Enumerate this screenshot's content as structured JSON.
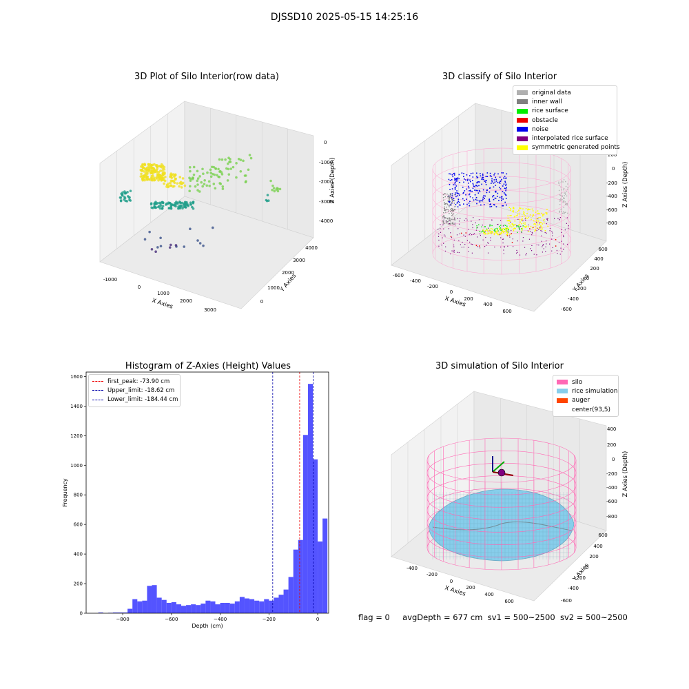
{
  "figure": {
    "suptitle": "DJSSD10 2025-05-15 14:25:16",
    "footer": {
      "flag": "flag = 0",
      "avg_depth": "avgDepth = 677 cm",
      "sv1": "sv1 = 500~2500",
      "sv2": "sv2 = 500~2500"
    }
  },
  "chart_data": [
    {
      "type": "scatter",
      "projection": "3d",
      "title": "3D Plot of Silo Interior(row data)",
      "xlabel": "X Axies",
      "ylabel": "Y Axies",
      "zlabel": "Z Axies (Depth)",
      "x_ticks": [
        "-1000",
        "0",
        "1000",
        "2000",
        "3000"
      ],
      "y_ticks": [
        "0",
        "1000",
        "2000",
        "3000",
        "4000"
      ],
      "z_ticks": [
        "0",
        "-1000",
        "-2000",
        "-3000",
        "-4000"
      ],
      "colormap": "viridis",
      "clusters": [
        {
          "label": "yellow",
          "color": "#f0e020"
        },
        {
          "label": "light-green",
          "color": "#7ad151"
        },
        {
          "label": "teal",
          "color": "#1f9e89"
        },
        {
          "label": "blue",
          "color": "#3b528b"
        },
        {
          "label": "purple",
          "color": "#472d7b"
        }
      ]
    },
    {
      "type": "scatter",
      "projection": "3d",
      "title": "3D classify of Silo Interior",
      "xlabel": "X Axies",
      "ylabel": "Y Axies",
      "zlabel": "Z Axies (Depth)",
      "x_ticks": [
        "-600",
        "-400",
        "-200",
        "0",
        "200",
        "400",
        "600"
      ],
      "y_ticks": [
        "-600",
        "-400",
        "-200",
        "0",
        "200",
        "400",
        "600"
      ],
      "z_ticks": [
        "200",
        "0",
        "-200",
        "-400",
        "-600",
        "-800"
      ],
      "legend_position": "top-right",
      "legend": [
        {
          "label": "original data",
          "color": "#b0b0b0"
        },
        {
          "label": "inner wall",
          "color": "#808080"
        },
        {
          "label": "rice surface",
          "color": "#00ee00"
        },
        {
          "label": "obstacle",
          "color": "#ee0000"
        },
        {
          "label": "noise",
          "color": "#0000ee"
        },
        {
          "label": "interpolated rice surface",
          "color": "#800080"
        },
        {
          "label": "symmetric generated points",
          "color": "#ffff00"
        }
      ]
    },
    {
      "type": "bar",
      "title": "Histogram of Z-Axies (Height) Values",
      "xlabel": "Depth (cm)",
      "ylabel": "Frequency",
      "xlim": [
        -950,
        45
      ],
      "ylim": [
        0,
        1630
      ],
      "x_ticks": [
        -800,
        -600,
        -400,
        -200,
        0
      ],
      "y_ticks": [
        0,
        200,
        400,
        600,
        800,
        1000,
        1200,
        1400,
        1600
      ],
      "bar_color": "#4b4bff",
      "bin_width": 20,
      "bins": [
        [
          -900,
          5
        ],
        [
          -880,
          0
        ],
        [
          -860,
          3
        ],
        [
          -840,
          5
        ],
        [
          -820,
          5
        ],
        [
          -800,
          5
        ],
        [
          -780,
          30
        ],
        [
          -760,
          95
        ],
        [
          -740,
          80
        ],
        [
          -720,
          85
        ],
        [
          -700,
          185
        ],
        [
          -680,
          190
        ],
        [
          -660,
          105
        ],
        [
          -640,
          90
        ],
        [
          -620,
          70
        ],
        [
          -600,
          75
        ],
        [
          -580,
          60
        ],
        [
          -560,
          50
        ],
        [
          -540,
          55
        ],
        [
          -520,
          60
        ],
        [
          -500,
          55
        ],
        [
          -480,
          65
        ],
        [
          -460,
          85
        ],
        [
          -440,
          80
        ],
        [
          -420,
          60
        ],
        [
          -400,
          70
        ],
        [
          -380,
          70
        ],
        [
          -360,
          65
        ],
        [
          -340,
          80
        ],
        [
          -320,
          110
        ],
        [
          -300,
          100
        ],
        [
          -280,
          95
        ],
        [
          -260,
          85
        ],
        [
          -240,
          80
        ],
        [
          -220,
          95
        ],
        [
          -200,
          85
        ],
        [
          -180,
          105
        ],
        [
          -160,
          125
        ],
        [
          -140,
          160
        ],
        [
          -120,
          245
        ],
        [
          -100,
          430
        ],
        [
          -80,
          495
        ],
        [
          -60,
          1205
        ],
        [
          -40,
          1550
        ],
        [
          -20,
          1040
        ],
        [
          0,
          485
        ],
        [
          20,
          640
        ]
      ],
      "vlines": [
        {
          "label": "first_peak: -73.90 cm",
          "x": -73.9,
          "color": "#ee0000"
        },
        {
          "label": "Upper_limit: -18.62 cm",
          "x": -18.62,
          "color": "#0000aa"
        },
        {
          "label": "Lower_limit: -184.44 cm",
          "x": -184.44,
          "color": "#0000aa"
        }
      ],
      "legend_position": "top-left"
    },
    {
      "type": "surface",
      "projection": "3d",
      "title": "3D simulation of Silo Interior",
      "xlabel": "X Axies",
      "ylabel": "Y Axies",
      "zlabel": "Z Axies (Depth)",
      "x_ticks": [
        "-400",
        "-200",
        "0",
        "200",
        "400",
        "600"
      ],
      "y_ticks": [
        "-600",
        "-400",
        "-200",
        "0",
        "200",
        "400",
        "600"
      ],
      "z_ticks": [
        "400",
        "200",
        "0",
        "-200",
        "-400",
        "-600",
        "-800"
      ],
      "legend_position": "top-right",
      "legend": [
        {
          "label": "silo",
          "color": "#ff69b4"
        },
        {
          "label": "rice simulation",
          "color": "#87ceeb"
        },
        {
          "label": "auger",
          "color": "#ff4500"
        },
        {
          "label": "center(93,5)",
          "color": "#ffffff"
        }
      ]
    }
  ]
}
